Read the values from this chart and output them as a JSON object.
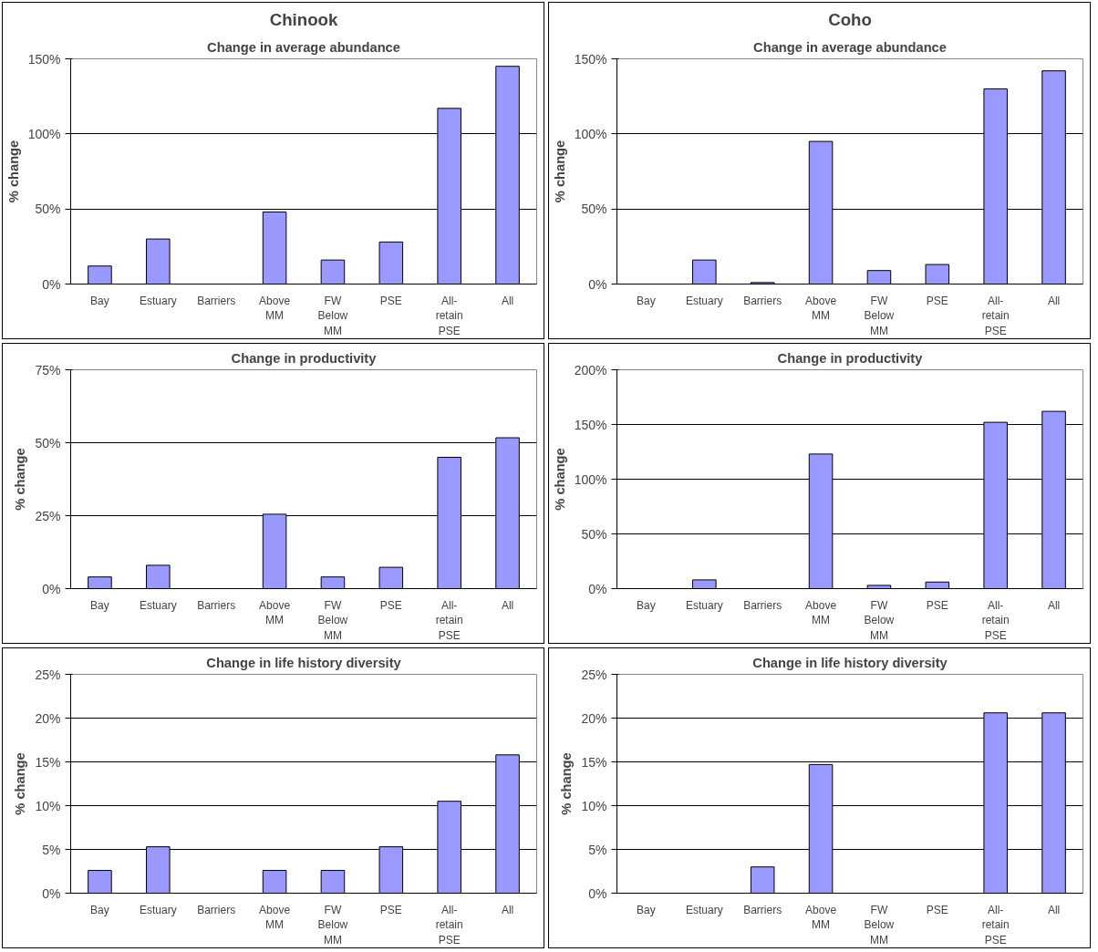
{
  "chart_data": [
    {
      "type": "bar",
      "subtitle": "Chinook",
      "title": "Change in average abundance",
      "ylabel": "% change",
      "categories": [
        "Bay",
        "Estuary",
        "Barriers",
        "Above MM",
        "FW Below MM",
        "PSE",
        "All-retain PSE",
        "All"
      ],
      "values": [
        12,
        30,
        0,
        48,
        16,
        28,
        117,
        145
      ],
      "color": "#9999ff",
      "ylim": [
        0,
        150
      ],
      "yticks": [
        {
          "value": 0,
          "label": "0%"
        },
        {
          "value": 50,
          "label": "50%"
        },
        {
          "value": 100,
          "label": "100%"
        },
        {
          "value": 150,
          "label": "150%"
        }
      ],
      "grid": "y"
    },
    {
      "type": "bar",
      "subtitle": "Coho",
      "title": "Change in average abundance",
      "ylabel": "% change",
      "categories": [
        "Bay",
        "Estuary",
        "Barriers",
        "Above MM",
        "FW Below MM",
        "PSE",
        "All-retain PSE",
        "All"
      ],
      "values": [
        0,
        16,
        1,
        95,
        9,
        13,
        130,
        142
      ],
      "color": "#9999ff",
      "ylim": [
        0,
        150
      ],
      "yticks": [
        {
          "value": 0,
          "label": "0%"
        },
        {
          "value": 50,
          "label": "50%"
        },
        {
          "value": 100,
          "label": "100%"
        },
        {
          "value": 150,
          "label": "150%"
        }
      ],
      "grid": "y"
    },
    {
      "type": "bar",
      "title": "Change in productivity",
      "ylabel": "% change",
      "categories": [
        "Bay",
        "Estuary",
        "Barriers",
        "Above MM",
        "FW Below MM",
        "PSE",
        "All-retain PSE",
        "All"
      ],
      "values": [
        4,
        8,
        0,
        25.5,
        4,
        7.3,
        45,
        51.7
      ],
      "color": "#9999ff",
      "ylim": [
        0,
        75
      ],
      "yticks": [
        {
          "value": 0,
          "label": "0%"
        },
        {
          "value": 25,
          "label": "25%"
        },
        {
          "value": 50,
          "label": "50%"
        },
        {
          "value": 75,
          "label": "75%"
        }
      ],
      "grid": "y"
    },
    {
      "type": "bar",
      "title": "Change in productivity",
      "ylabel": "% change",
      "categories": [
        "Bay",
        "Estuary",
        "Barriers",
        "Above MM",
        "FW Below MM",
        "PSE",
        "All-retain PSE",
        "All"
      ],
      "values": [
        0,
        8,
        0,
        123,
        3,
        6,
        152,
        162
      ],
      "color": "#9999ff",
      "ylim": [
        0,
        200
      ],
      "yticks": [
        {
          "value": 0,
          "label": "0%"
        },
        {
          "value": 50,
          "label": "50%"
        },
        {
          "value": 100,
          "label": "100%"
        },
        {
          "value": 150,
          "label": "150%"
        },
        {
          "value": 200,
          "label": "200%"
        }
      ],
      "grid": "y"
    },
    {
      "type": "bar",
      "title": "Change in life history diversity",
      "ylabel": "% change",
      "categories": [
        "Bay",
        "Estuary",
        "Barriers",
        "Above MM",
        "FW Below MM",
        "PSE",
        "All-retain PSE",
        "All"
      ],
      "values": [
        2.6,
        5.3,
        0,
        2.6,
        2.6,
        5.3,
        10.5,
        15.8
      ],
      "color": "#9999ff",
      "ylim": [
        0,
        25
      ],
      "yticks": [
        {
          "value": 0,
          "label": "0%"
        },
        {
          "value": 5,
          "label": "5%"
        },
        {
          "value": 10,
          "label": "10%"
        },
        {
          "value": 15,
          "label": "15%"
        },
        {
          "value": 20,
          "label": "20%"
        },
        {
          "value": 25,
          "label": "25%"
        }
      ],
      "grid": "y"
    },
    {
      "type": "bar",
      "title": "Change in life history diversity",
      "ylabel": "% change",
      "categories": [
        "Bay",
        "Estuary",
        "Barriers",
        "Above MM",
        "FW Below MM",
        "PSE",
        "All-retain PSE",
        "All"
      ],
      "values": [
        0,
        0,
        3,
        14.7,
        0,
        0,
        20.6,
        20.6
      ],
      "color": "#9999ff",
      "ylim": [
        0,
        25
      ],
      "yticks": [
        {
          "value": 0,
          "label": "0%"
        },
        {
          "value": 5,
          "label": "5%"
        },
        {
          "value": 10,
          "label": "10%"
        },
        {
          "value": 15,
          "label": "15%"
        },
        {
          "value": 20,
          "label": "20%"
        },
        {
          "value": 25,
          "label": "25%"
        }
      ],
      "grid": "y"
    }
  ]
}
